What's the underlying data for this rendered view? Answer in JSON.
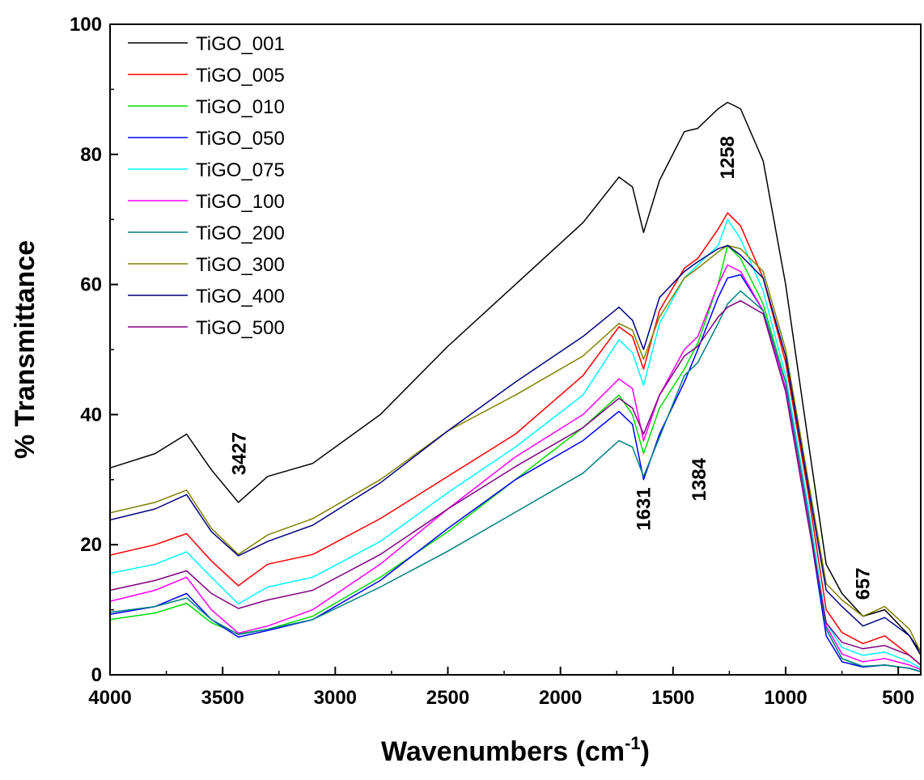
{
  "chart_data": {
    "type": "line",
    "title": "",
    "xlabel": "Wavenumbers (cm",
    "xlabel_sup": "-1",
    "xlabel_close": ")",
    "ylabel": "% Transmittance",
    "xlim": [
      4000,
      400
    ],
    "ylim": [
      0,
      100
    ],
    "x_reversed": true,
    "x_ticks": [
      4000,
      3500,
      3000,
      2500,
      2000,
      1500,
      1000,
      500
    ],
    "y_ticks": [
      0,
      20,
      40,
      60,
      80,
      100
    ],
    "grid": false,
    "legend_position": "top-left",
    "x": [
      4000,
      3800,
      3660,
      3550,
      3430,
      3300,
      3100,
      2800,
      2500,
      2200,
      1900,
      1740,
      1680,
      1631,
      1560,
      1450,
      1390,
      1300,
      1258,
      1200,
      1100,
      1000,
      900,
      820,
      750,
      657,
      560,
      450,
      400
    ],
    "series": [
      {
        "name": "TiGO_001",
        "color": "#000000",
        "values": [
          31.8,
          34.0,
          37.0,
          31.5,
          26.5,
          30.5,
          32.5,
          40.0,
          50.5,
          60.0,
          69.5,
          76.5,
          75.0,
          68.0,
          76.0,
          83.5,
          84.0,
          87.0,
          88.0,
          87.0,
          79.0,
          60.0,
          36.0,
          17.0,
          12.5,
          9.0,
          10.0,
          6.0,
          3.5
        ]
      },
      {
        "name": "TiGO_005",
        "color": "#ff0000",
        "values": [
          18.4,
          20.0,
          21.7,
          17.5,
          13.7,
          17.0,
          18.5,
          24.0,
          30.5,
          37.0,
          46.0,
          53.5,
          52.0,
          47.0,
          56.0,
          62.5,
          64.0,
          68.5,
          71.0,
          69.0,
          61.0,
          48.0,
          28.0,
          10.0,
          6.5,
          4.8,
          6.0,
          3.0,
          1.5
        ]
      },
      {
        "name": "TiGO_010",
        "color": "#00dd00",
        "values": [
          8.5,
          9.5,
          11.0,
          8.0,
          6.3,
          7.0,
          9.0,
          15.0,
          22.0,
          30.0,
          38.0,
          43.0,
          40.0,
          34.0,
          41.0,
          47.0,
          51.0,
          60.0,
          66.0,
          64.0,
          57.0,
          45.0,
          25.0,
          7.0,
          2.5,
          1.2,
          1.5,
          1.0,
          0.5
        ]
      },
      {
        "name": "TiGO_050",
        "color": "#0000ff",
        "values": [
          9.3,
          10.5,
          12.5,
          8.5,
          5.8,
          6.8,
          8.5,
          14.5,
          22.5,
          30.0,
          36.0,
          40.5,
          38.5,
          30.0,
          37.0,
          45.0,
          50.0,
          58.0,
          61.0,
          61.5,
          56.0,
          44.0,
          24.0,
          6.0,
          2.0,
          1.2,
          1.5,
          1.0,
          0.5
        ]
      },
      {
        "name": "TiGO_075",
        "color": "#00ffff",
        "values": [
          15.6,
          17.0,
          18.9,
          15.0,
          10.9,
          13.5,
          15.0,
          20.5,
          28.0,
          35.0,
          43.0,
          51.5,
          49.5,
          44.5,
          54.0,
          61.0,
          63.0,
          66.0,
          70.0,
          67.0,
          59.0,
          46.0,
          26.0,
          8.0,
          4.2,
          3.0,
          3.5,
          2.0,
          1.0
        ]
      },
      {
        "name": "TiGO_100",
        "color": "#ff00ff",
        "values": [
          11.3,
          13.0,
          15.0,
          10.0,
          6.4,
          7.5,
          10.0,
          17.0,
          25.5,
          33.5,
          40.0,
          45.5,
          44.0,
          36.0,
          43.0,
          50.0,
          52.0,
          60.0,
          63.0,
          62.0,
          56.0,
          44.0,
          24.0,
          7.5,
          3.2,
          2.0,
          2.5,
          1.5,
          0.8
        ]
      },
      {
        "name": "TiGO_200",
        "color": "#008080",
        "values": [
          9.6,
          10.5,
          11.8,
          8.5,
          6.2,
          7.0,
          8.5,
          13.5,
          19.0,
          25.0,
          31.0,
          36.0,
          35.0,
          30.5,
          36.5,
          46.0,
          48.0,
          54.0,
          57.0,
          59.0,
          56.0,
          45.0,
          25.0,
          7.0,
          2.5,
          1.3,
          1.5,
          1.0,
          0.5
        ]
      },
      {
        "name": "TiGO_300",
        "color": "#808000",
        "values": [
          24.9,
          26.5,
          28.4,
          22.5,
          18.5,
          21.5,
          24.0,
          30.0,
          37.5,
          43.0,
          49.0,
          54.0,
          53.0,
          48.5,
          55.0,
          61.0,
          62.5,
          65.0,
          66.0,
          65.5,
          62.0,
          50.0,
          30.0,
          14.0,
          11.5,
          9.0,
          10.5,
          7.0,
          3.5
        ]
      },
      {
        "name": "TiGO_400",
        "color": "#000080",
        "values": [
          23.8,
          25.5,
          27.7,
          22.0,
          18.3,
          20.5,
          23.0,
          29.5,
          37.5,
          45.0,
          52.0,
          56.5,
          54.5,
          50.0,
          58.0,
          62.0,
          63.5,
          65.5,
          66.0,
          64.5,
          61.0,
          49.0,
          29.0,
          13.0,
          10.5,
          7.5,
          8.8,
          6.0,
          3.0
        ]
      },
      {
        "name": "TiGO_500",
        "color": "#800080",
        "values": [
          13.0,
          14.5,
          16.0,
          12.5,
          10.2,
          11.5,
          13.0,
          18.5,
          25.5,
          32.0,
          38.0,
          42.5,
          41.0,
          37.0,
          43.0,
          49.0,
          50.5,
          55.0,
          56.5,
          57.5,
          55.5,
          43.5,
          23.5,
          8.0,
          5.0,
          4.0,
          4.5,
          3.0,
          1.5
        ]
      }
    ],
    "annotations": [
      {
        "text": "3427",
        "x": 3427,
        "y": 34,
        "rotate": true
      },
      {
        "text": "1631",
        "x": 1631,
        "y": 25.5,
        "rotate": true
      },
      {
        "text": "1384",
        "x": 1384,
        "y": 30,
        "rotate": true
      },
      {
        "text": "1258",
        "x": 1258,
        "y": 79.5,
        "rotate": true
      },
      {
        "text": "657",
        "x": 657,
        "y": 14,
        "rotate": true
      }
    ]
  }
}
